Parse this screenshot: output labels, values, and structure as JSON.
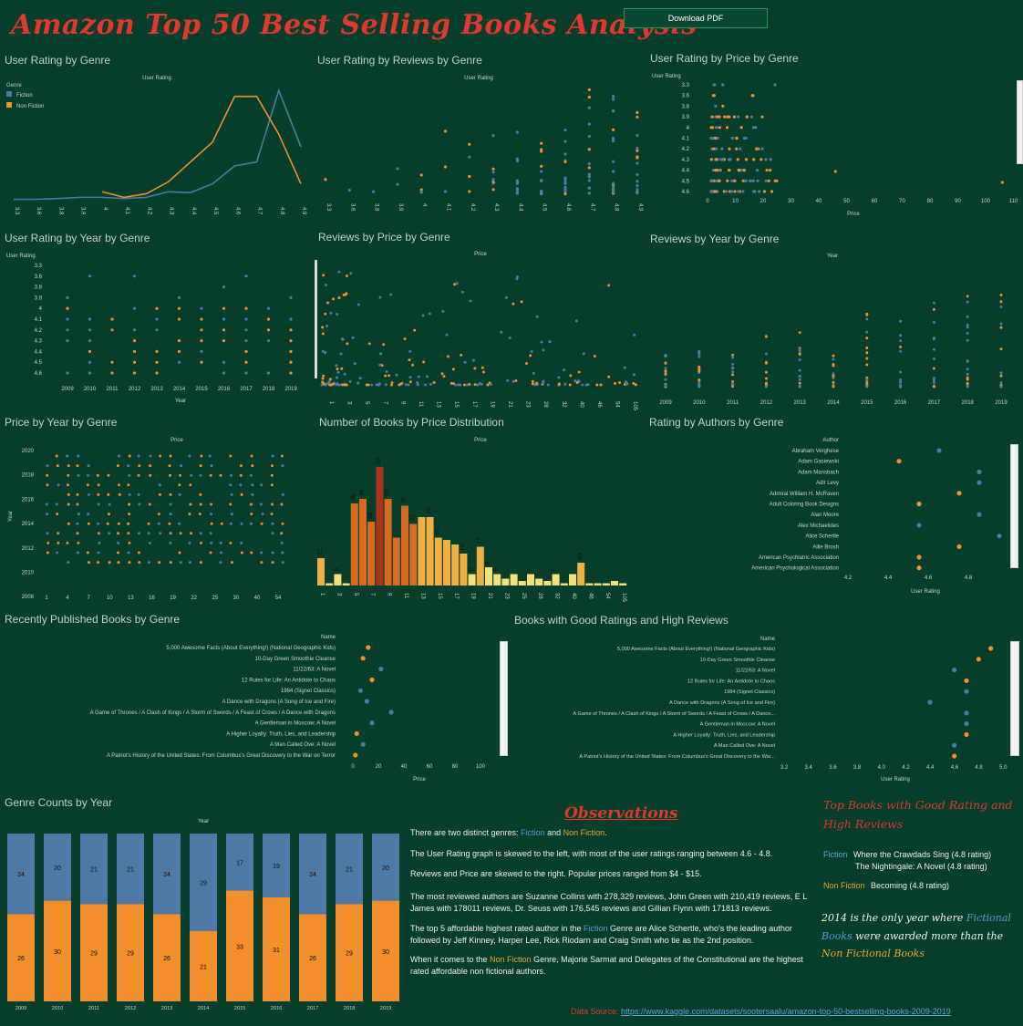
{
  "header": {
    "title": "Amazon Top 50 Best Selling Books Analysis",
    "download_label": "Download PDF"
  },
  "colors": {
    "fiction": "#4e79a7",
    "nonfiction": "#f28e2b",
    "background": "#063d2b",
    "accent_red": "#e0382c"
  },
  "panels": {
    "rating_genre": {
      "title": "User Rating by Genre",
      "axis": "User Rating",
      "legend_title": "Genre",
      "legend": [
        "Fiction",
        "Non Fiction"
      ]
    },
    "rating_reviews": {
      "title": "User Rating by Reviews by Genre",
      "axis": "User Rating"
    },
    "rating_price": {
      "title": "User Rating by Price by Genre",
      "axis_y": "User Rating",
      "axis_x": "Price"
    },
    "rating_year": {
      "title": "User Rating by Year by Genre",
      "axis_y": "User Rating",
      "axis_x": "Year"
    },
    "reviews_price": {
      "title": "Reviews by Price by Genre",
      "axis": "Price"
    },
    "reviews_year": {
      "title": "Reviews by Year by Genre",
      "axis": "Year"
    },
    "price_year": {
      "title": "Price by Year by Genre",
      "axis_top": "Price",
      "axis_y": "Year"
    },
    "price_dist": {
      "title": "Number of Books by Price Distribution",
      "axis": "Price"
    },
    "authors": {
      "title": "Rating by Authors by Genre",
      "axis_top": "Author",
      "axis_x": "User Rating"
    },
    "recent": {
      "title": "Recently Published  Books by Genre",
      "axis_top": "Name",
      "axis_x": "Price"
    },
    "good": {
      "title": "Books with Good Ratings and High Reviews",
      "axis_top": "Name",
      "axis_x": "User Rating"
    },
    "counts": {
      "title": "Genre Counts by Year",
      "axis": "Year"
    }
  },
  "chart_data": [
    {
      "id": "rating_genre",
      "type": "line",
      "categories": [
        "3.3",
        "3.6",
        "3.8",
        "3.9",
        "4",
        "4.1",
        "4.2",
        "4.3",
        "4.4",
        "4.5",
        "4.6",
        "4.7",
        "4.8",
        "4.9"
      ],
      "series": [
        {
          "name": "Fiction",
          "values": [
            1,
            1,
            3,
            6,
            6,
            3,
            6,
            20,
            18,
            40,
            85,
            95,
            275,
            133
          ]
        },
        {
          "name": "Non Fiction",
          "values": [
            null,
            null,
            null,
            null,
            20,
            6,
            15,
            45,
            95,
            145,
            260,
            260,
            165,
            40
          ]
        }
      ]
    },
    {
      "id": "rating_reviews",
      "type": "scatter",
      "categories": [
        "3.3",
        "3.6",
        "3.8",
        "3.9",
        "4",
        "4.1",
        "4.2",
        "4.3",
        "4.4",
        "4.5",
        "4.6",
        "4.7",
        "4.8",
        "4.9"
      ]
    },
    {
      "id": "rating_price",
      "type": "scatter",
      "y_ticks": [
        "3.3",
        "3.6",
        "3.8",
        "3.9",
        "4",
        "4.1",
        "4.2",
        "4.3",
        "4.4",
        "4.5",
        "4.6"
      ],
      "x_ticks": [
        "0",
        "10",
        "20",
        "30",
        "40",
        "50",
        "60",
        "70",
        "80",
        "90",
        "100",
        "110"
      ]
    },
    {
      "id": "rating_year",
      "type": "scatter",
      "y_ticks": [
        "3.3",
        "3.6",
        "3.8",
        "3.9",
        "4",
        "4.1",
        "4.2",
        "4.3",
        "4.4",
        "4.5",
        "4.6"
      ],
      "x_ticks": [
        "2009",
        "2010",
        "2011",
        "2012",
        "2013",
        "2014",
        "2015",
        "2016",
        "2017",
        "2018",
        "2019"
      ]
    },
    {
      "id": "reviews_price",
      "type": "scatter",
      "x_ticks": [
        "1",
        "3",
        "5",
        "7",
        "9",
        "11",
        "13",
        "15",
        "17",
        "19",
        "21",
        "23",
        "28",
        "32",
        "40",
        "46",
        "54",
        "105"
      ]
    },
    {
      "id": "reviews_year",
      "type": "scatter",
      "x_ticks": [
        "2009",
        "2010",
        "2011",
        "2012",
        "2013",
        "2014",
        "2015",
        "2016",
        "2017",
        "2018",
        "2019"
      ]
    },
    {
      "id": "price_year",
      "type": "scatter",
      "y_ticks": [
        "2020",
        "2018",
        "2016",
        "2014",
        "2012",
        "2010",
        "2008"
      ],
      "x_ticks": [
        "1",
        "4",
        "7",
        "10",
        "13",
        "16",
        "19",
        "22",
        "25",
        "30",
        "40",
        "54"
      ]
    },
    {
      "id": "price_dist",
      "type": "bar",
      "ticks": [
        "1",
        "3",
        "5",
        "7",
        "9",
        "11",
        "13",
        "15",
        "17",
        "19",
        "21",
        "23",
        "25",
        "28",
        "32",
        "40",
        "46",
        "54",
        "105"
      ],
      "values": [
        12,
        1,
        5,
        1,
        36,
        38,
        28,
        52,
        38,
        21,
        35,
        27,
        30,
        30,
        21,
        20,
        18,
        14,
        5,
        17,
        8,
        5,
        3,
        5,
        2,
        5,
        3,
        2,
        5,
        1,
        5,
        10,
        1,
        1,
        1,
        2,
        1
      ],
      "labels": [
        "12",
        "",
        "5",
        "",
        "36",
        "38",
        "28",
        "52",
        "38",
        "",
        "35",
        "27",
        "",
        "30",
        "21",
        "",
        "",
        "14",
        "5",
        "17",
        "8",
        "5",
        "",
        "",
        "",
        "",
        "",
        "",
        "5",
        "",
        "",
        "10",
        "",
        "",
        "",
        "",
        ""
      ]
    },
    {
      "id": "authors",
      "type": "scatter",
      "x_ticks": [
        "4.2",
        "4.4",
        "4.6",
        "4.8"
      ],
      "categories": [
        "Abraham Verghese",
        "Adam Gasiewski",
        "Adam Mansbach",
        "Adir Levy",
        "Admiral William H. McRaven",
        "Adult Coloring Book Designs",
        "Alan Moore",
        "Alex Michaelides",
        "Alice Schertle",
        "Allie Brosh",
        "American Psychiatric Association",
        "American Psychological Association"
      ],
      "values": [
        4.6,
        4.4,
        4.8,
        4.8,
        4.7,
        4.5,
        4.8,
        4.5,
        4.9,
        4.7,
        4.5,
        4.5
      ],
      "genre": [
        "Fiction",
        "Non Fiction",
        "Fiction",
        "Fiction",
        "Non Fiction",
        "Non Fiction",
        "Fiction",
        "Fiction",
        "Fiction",
        "Non Fiction",
        "Non Fiction",
        "Non Fiction"
      ]
    },
    {
      "id": "recent",
      "type": "scatter",
      "x_ticks": [
        "0",
        "20",
        "40",
        "60",
        "80",
        "100"
      ],
      "categories": [
        "5,000 Awesome Facts (About Everything!) (National Geographic Kids)",
        "10-Day Green Smoothie Cleanse",
        "11/22/63: A Novel",
        "12 Rules for Life: An Antidote to Chaos",
        "1984 (Signet Classics)",
        "A Dance with Dragons (A Song of Ice and Fire)",
        "A Game of Thrones / A Clash of Kings / A Storm of Swords / A Feast of Crows / A Dance with Dragons",
        "A Gentleman in Moscow: A Novel",
        "A Higher Loyalty: Truth, Lies, and Leadership",
        "A Man Called Ove: A Novel",
        "A Patriot's History of the United States: From Columbus's Great Discovery to the War on Terror"
      ],
      "values": [
        12,
        8,
        22,
        15,
        6,
        11,
        30,
        15,
        3,
        8,
        2
      ],
      "genre": [
        "Non Fiction",
        "Non Fiction",
        "Fiction",
        "Non Fiction",
        "Fiction",
        "Fiction",
        "Fiction",
        "Fiction",
        "Non Fiction",
        "Fiction",
        "Non Fiction"
      ]
    },
    {
      "id": "good",
      "type": "scatter",
      "x_ticks": [
        "3.2",
        "3.4",
        "3.6",
        "3.8",
        "4.0",
        "4.2",
        "4.4",
        "4.6",
        "4.8",
        "5.0"
      ],
      "categories": [
        "5,000 Awesome Facts (About Everything!) (National Geographic Kids)",
        "10-Day Green Smoothie Cleanse",
        "11/22/63: A Novel",
        "12 Rules for Life: An Antidote to Chaos",
        "1984 (Signet Classics)",
        "A Dance with Dragons (A Song of Ice and Fire)",
        "A Game of Thrones / A Clash of Kings / A Storm of Swords / A Feast of Crows / A Dance...",
        "A Gentleman in Moscow: A Novel",
        "A Higher Loyalty: Truth, Lies, and Leadership",
        "A Man Called Ove: A Novel",
        "A Patriot's History of the United States: From Columbus's Great Discovery to the War..."
      ],
      "values": [
        4.9,
        4.8,
        4.6,
        4.7,
        4.7,
        4.4,
        4.7,
        4.7,
        4.7,
        4.6,
        4.6
      ],
      "genre": [
        "Non Fiction",
        "Non Fiction",
        "Fiction",
        "Non Fiction",
        "Fiction",
        "Fiction",
        "Fiction",
        "Fiction",
        "Non Fiction",
        "Fiction",
        "Non Fiction"
      ]
    },
    {
      "id": "counts",
      "type": "bar",
      "categories": [
        "2009",
        "2010",
        "2011",
        "2012",
        "2013",
        "2014",
        "2015",
        "2016",
        "2017",
        "2018",
        "2019"
      ],
      "series": [
        {
          "name": "Fiction",
          "values": [
            24,
            20,
            21,
            21,
            24,
            29,
            17,
            19,
            24,
            21,
            20
          ]
        },
        {
          "name": "Non Fiction",
          "values": [
            26,
            30,
            29,
            29,
            26,
            21,
            33,
            31,
            26,
            29,
            30
          ]
        }
      ]
    }
  ],
  "observations": {
    "title": "Observations",
    "p1": {
      "a": "There are two distinct genres: ",
      "fiction": "Fiction",
      "b": " and ",
      "nonfiction": "Non Fiction",
      "c": "."
    },
    "p2": "The User Rating graph is skewed to the left, with most of the user ratings ranging between 4.6 - 4.8.",
    "p3": "Reviews and Price are skewed to the right. Popular prices ranged from $4 - $15.",
    "p4": "The most reviewed authors are Suzanne Collins with 278,329 reviews, John Green with 210,419 reviews, E L James with 178011 reviews, Dr. Seuss with 176,545 reviews and Gillian Flynn with 171813 reviews.",
    "p5": {
      "a": "The top 5 affordable highest rated author in the ",
      "fiction": "Fiction",
      "b": " Genre are Alice Schertle, who's the leading author followed by Jeff Kinney, Harper Lee, Rick Riodarn and Craig Smith who tie as the 2nd position."
    },
    "p6": {
      "a": "When it comes to the ",
      "nonfiction": "Non Fiction",
      "b": " Genre, Majorie Sarmat and Delegates of the Constitutional are the highest rated affordable non fictional  authors."
    }
  },
  "top_books": {
    "title_line1": "Top Books with Good Rating and",
    "title_line2": "High Reviews",
    "fiction_label": "Fiction",
    "fiction_book1": "Where the Crawdads Sing (4.8 rating)",
    "fiction_book2": "The Nightingale: A Novel (4.8 rating)",
    "nonfiction_label": "Non Fiction",
    "nonfiction_book": "Becoming (4.8 rating)",
    "note": {
      "a": "2014 is the only year where ",
      "fiction": "Fictional",
      "b": "Books",
      "c": " were awarded more than the",
      "nonfiction": "Non Fictional Books"
    }
  },
  "source": {
    "label": "Data Source: ",
    "url": "https://www.kaggle.com/datasets/sootersaalu/amazon-top-50-bestselling-books-2009-2019"
  }
}
